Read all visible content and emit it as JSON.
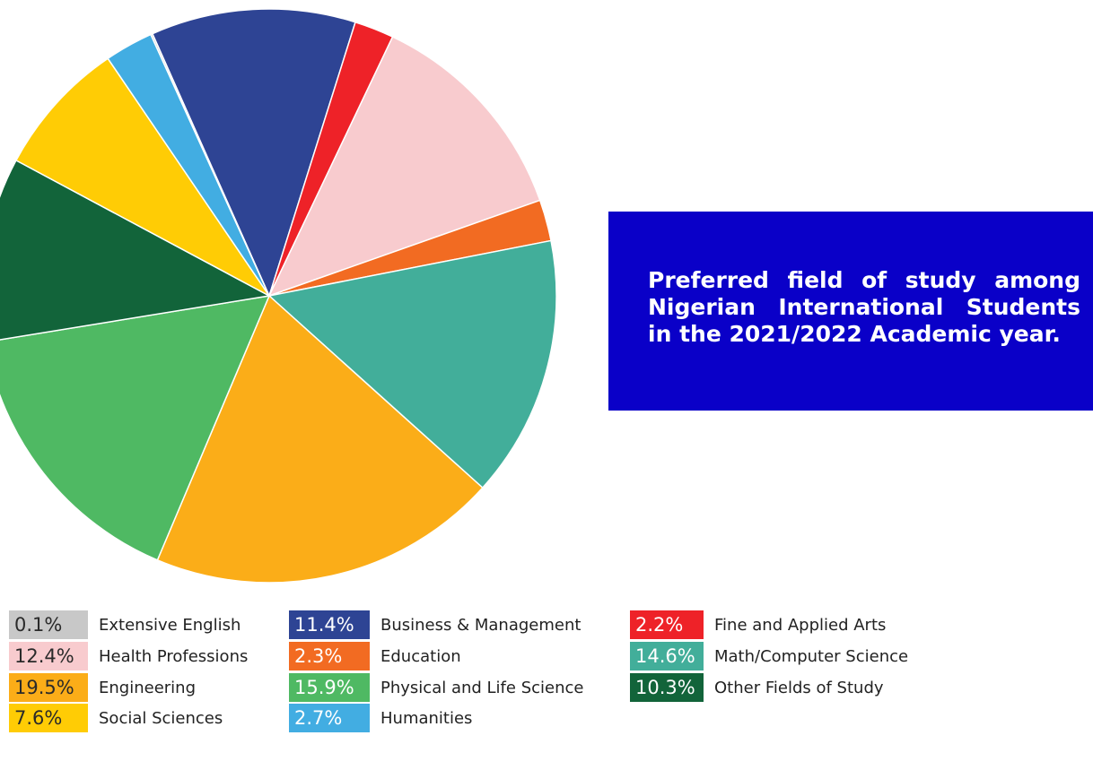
{
  "chart_data": {
    "type": "pie",
    "title": "Preferred field of study among Nigerian International Students in the 2021/2022 Academic year.",
    "categories": [
      "Business & Management",
      "Fine and Applied Arts",
      "Health Professions",
      "Education",
      "Math/Computer Science",
      "Engineering",
      "Physical and Life Science",
      "Other Fields of Study",
      "Social Sciences",
      "Humanities",
      "Extensive English"
    ],
    "values": [
      11.4,
      2.2,
      12.4,
      2.3,
      14.6,
      19.5,
      15.9,
      10.3,
      7.6,
      2.7,
      0.1
    ],
    "value_labels": [
      "11.4%",
      "2.2%",
      "12.4%",
      "2.3%",
      "14.6%",
      "19.5%",
      "15.9%",
      "10.3%",
      "7.6%",
      "2.7%",
      "0.1%"
    ],
    "colors": [
      "#2e4494",
      "#ee2228",
      "#f8cbce",
      "#f26b22",
      "#42ae9a",
      "#fbad18",
      "#4fb963",
      "#12643a",
      "#ffcc05",
      "#42ade2",
      "#c8c8c8"
    ]
  }
}
